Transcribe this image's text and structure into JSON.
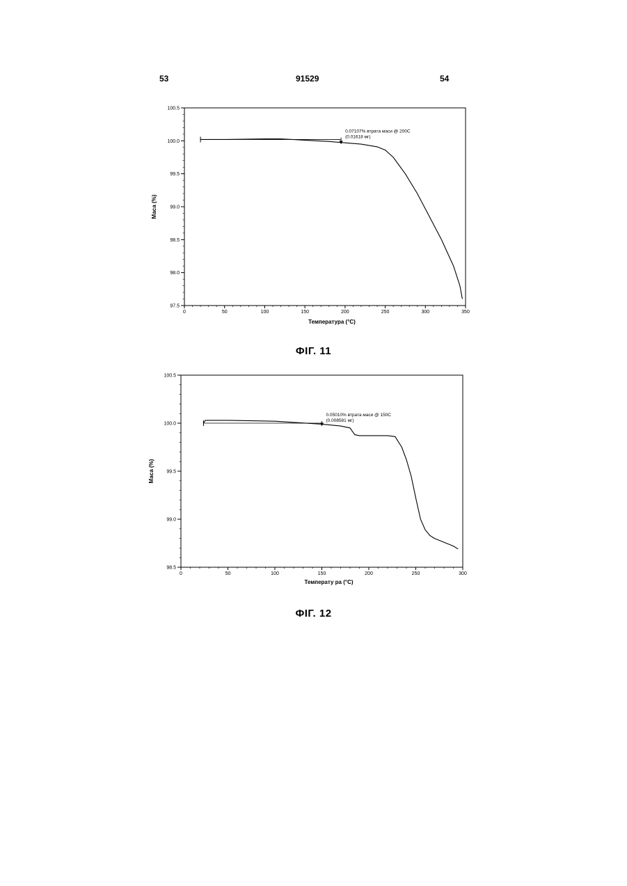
{
  "page": {
    "number_left": "53",
    "doc_number": "91529",
    "number_right": "54"
  },
  "figures": [
    {
      "caption": "ФІГ. 11"
    },
    {
      "caption": "ФІГ. 12"
    }
  ],
  "chart_data": [
    {
      "type": "line",
      "title": "",
      "xlabel": "Температура (°C)",
      "ylabel": "Маса (%)",
      "xlim": [
        0,
        350
      ],
      "ylim": [
        97.5,
        100.5
      ],
      "xticks": [
        0,
        50,
        100,
        150,
        200,
        250,
        300,
        350
      ],
      "yticks": [
        97.5,
        98.0,
        98.5,
        99.0,
        99.5,
        100.0,
        100.5
      ],
      "ytick_labels": [
        "97.5",
        "98.0",
        "98.5",
        "99.0",
        "99.5",
        "100.0",
        "100.5"
      ],
      "annotation": {
        "line1": "0.07107% втрата маси @ 200C",
        "line2": "(0.01618 мг)",
        "x": 195,
        "y": 99.98
      },
      "grid": false,
      "series": [
        {
          "x": [
            20,
            50,
            100,
            120,
            150,
            180,
            200,
            220,
            240,
            250,
            260,
            275,
            290,
            305,
            320,
            335,
            343,
            346
          ],
          "values": [
            100.02,
            100.02,
            100.03,
            100.03,
            100.01,
            99.99,
            99.97,
            99.95,
            99.91,
            99.86,
            99.75,
            99.5,
            99.2,
            98.85,
            98.5,
            98.1,
            97.8,
            97.6
          ]
        }
      ]
    },
    {
      "type": "line",
      "title": "",
      "xlabel": "Температу ра (°C)",
      "ylabel": "Маса (%)",
      "xlim": [
        0,
        300
      ],
      "ylim": [
        98.5,
        100.5
      ],
      "xticks": [
        0,
        50,
        100,
        150,
        200,
        250,
        300
      ],
      "yticks": [
        98.5,
        99.0,
        99.5,
        100.0,
        100.5
      ],
      "ytick_labels": [
        "98.5",
        "99.0",
        "99.5",
        "100.0",
        "100.5"
      ],
      "annotation": {
        "line1": "0.05010% втрата маси @ 150C",
        "line2": "(0.008581 мг)",
        "x": 150,
        "y": 99.99
      },
      "grid": false,
      "series": [
        {
          "x": [
            24,
            26,
            50,
            100,
            150,
            170,
            180,
            185,
            190,
            200,
            210,
            220,
            228,
            235,
            240,
            245,
            250,
            255,
            260,
            265,
            270,
            280,
            290,
            295
          ],
          "values": [
            100.0,
            100.03,
            100.03,
            100.02,
            99.99,
            99.97,
            99.95,
            99.88,
            99.87,
            99.87,
            99.87,
            99.87,
            99.86,
            99.75,
            99.62,
            99.45,
            99.22,
            99.0,
            98.89,
            98.83,
            98.8,
            98.76,
            98.72,
            98.69
          ]
        }
      ]
    }
  ]
}
